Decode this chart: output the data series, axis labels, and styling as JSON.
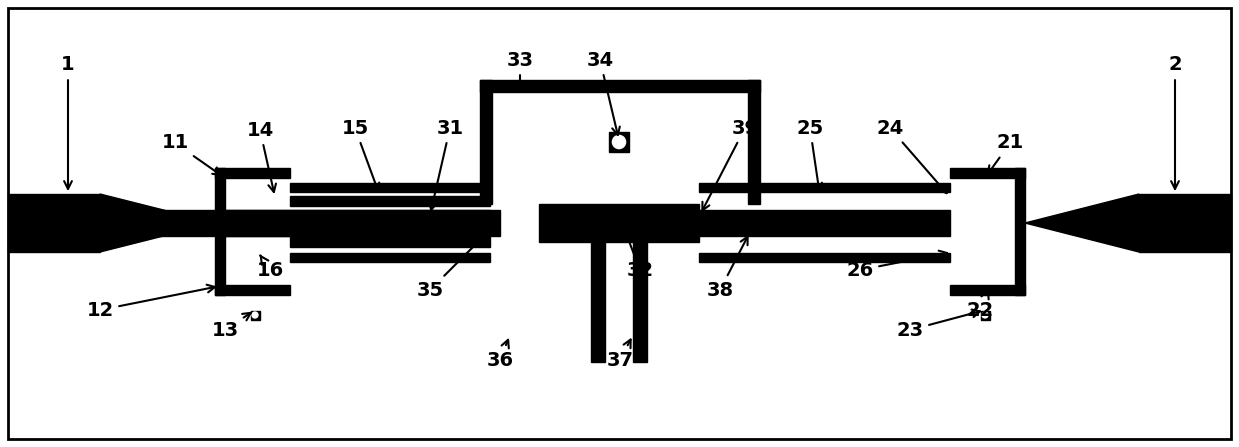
{
  "fig_width": 12.39,
  "fig_height": 4.47,
  "dpi": 100
}
